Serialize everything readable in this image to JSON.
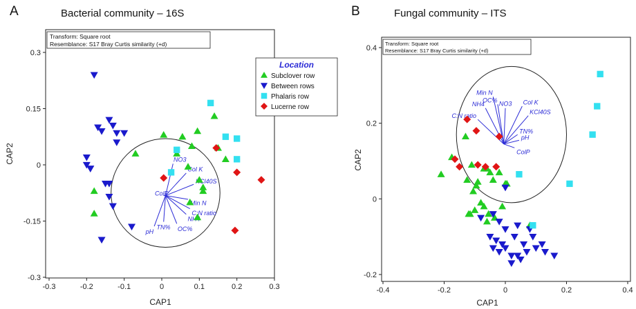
{
  "chart_data": [
    {
      "type": "scatter",
      "panel_letter": "A",
      "title": "Bacterial community – 16S",
      "xlabel": "CAP1",
      "ylabel": "CAP2",
      "xlim": [
        -0.3,
        0.3
      ],
      "ylim": [
        -0.3,
        0.3
      ],
      "xticks": [
        -0.3,
        -0.2,
        -0.1,
        0,
        0.1,
        0.2,
        0.3
      ],
      "yticks": [
        -0.3,
        -0.15,
        0,
        0.15,
        0.3
      ],
      "info_box": [
        "Transform: Square root",
        "Resemblance: S17 Bray Curtis similarity (+d)"
      ],
      "legend": {
        "title": "Location",
        "position": "top-right",
        "entries": [
          {
            "label": "Subclover row",
            "marker": "triangle-up",
            "color": "#22cc22"
          },
          {
            "label": "Between rows",
            "marker": "triangle-down",
            "color": "#1a1acc"
          },
          {
            "label": "Phalaris row",
            "marker": "square",
            "color": "#33e0f0"
          },
          {
            "label": "Lucerne row",
            "marker": "diamond",
            "color": "#e01515"
          }
        ]
      },
      "circle": {
        "cx": 0.01,
        "cy": -0.075,
        "r": 0.145
      },
      "vector_origin": [
        0.01,
        -0.082
      ],
      "vectors": [
        {
          "label": "NO3",
          "dx": 0.02,
          "dy": 0.085
        },
        {
          "label": "Col K",
          "dx": 0.055,
          "dy": 0.06
        },
        {
          "label": "KCl40S",
          "dx": 0.075,
          "dy": 0.03
        },
        {
          "label": "ColP",
          "dx": -0.005,
          "dy": 0.0
        },
        {
          "label": "Min N",
          "dx": 0.06,
          "dy": -0.01
        },
        {
          "label": "C:N ratio",
          "dx": 0.065,
          "dy": -0.035
        },
        {
          "label": "NH4",
          "dx": 0.055,
          "dy": -0.05
        },
        {
          "label": "OC%",
          "dx": 0.03,
          "dy": -0.075
        },
        {
          "label": "TN%",
          "dx": -0.005,
          "dy": -0.07
        },
        {
          "label": "pH",
          "dx": -0.03,
          "dy": -0.082
        }
      ],
      "series": [
        {
          "name": "Subclover row",
          "marker": "triangle-up",
          "color": "#22cc22",
          "x": [
            0.005,
            0.055,
            0.095,
            0.14,
            0.08,
            0.04,
            -0.07,
            0.07,
            0.15,
            0.17,
            0.1,
            0.11,
            0.11,
            0.075,
            0.095,
            -0.18,
            -0.18
          ],
          "y": [
            0.08,
            0.075,
            0.09,
            0.13,
            0.05,
            0.03,
            0.03,
            -0.005,
            0.045,
            0.015,
            -0.04,
            -0.06,
            -0.07,
            -0.1,
            -0.14,
            -0.07,
            -0.13
          ]
        },
        {
          "name": "Between rows",
          "marker": "triangle-down",
          "color": "#1a1acc",
          "x": [
            -0.18,
            -0.17,
            -0.14,
            -0.13,
            -0.12,
            -0.1,
            -0.16,
            -0.12,
            -0.2,
            -0.2,
            -0.19,
            -0.19,
            -0.15,
            -0.14,
            -0.14,
            -0.13,
            -0.16,
            -0.08
          ],
          "y": [
            0.24,
            0.1,
            0.12,
            0.105,
            0.085,
            0.085,
            0.09,
            0.06,
            0.02,
            0.0,
            -0.01,
            -0.01,
            -0.05,
            -0.05,
            -0.085,
            -0.11,
            -0.2,
            -0.165
          ]
        },
        {
          "name": "Phalaris row",
          "marker": "square",
          "color": "#33e0f0",
          "x": [
            0.13,
            0.17,
            0.2,
            0.2,
            0.04,
            0.025
          ],
          "y": [
            0.165,
            0.075,
            0.07,
            0.015,
            0.04,
            -0.02
          ]
        },
        {
          "name": "Lucerne row",
          "marker": "diamond",
          "color": "#e01515",
          "x": [
            0.145,
            0.2,
            0.265,
            0.195,
            0.005
          ],
          "y": [
            0.045,
            -0.02,
            -0.04,
            -0.175,
            -0.035
          ]
        }
      ]
    },
    {
      "type": "scatter",
      "panel_letter": "B",
      "title": "Fungal community – ITS",
      "xlabel": "CAP1",
      "ylabel": "CAP2",
      "xlim": [
        -0.4,
        0.4
      ],
      "ylim": [
        -0.2,
        0.4
      ],
      "xticks": [
        -0.4,
        -0.2,
        0,
        0.2,
        0.4
      ],
      "yticks": [
        -0.2,
        0,
        0.2,
        0.4
      ],
      "info_box": [
        "Transform: Square root",
        "Resemblance: S17 Bray Curtis similarity (+d)"
      ],
      "circle": {
        "cx": 0.02,
        "cy": 0.17,
        "r": 0.18
      },
      "vector_origin": [
        -0.005,
        0.145
      ],
      "vectors": [
        {
          "label": "Min N",
          "dx": -0.035,
          "dy": 0.125
        },
        {
          "label": "OC%",
          "dx": -0.02,
          "dy": 0.105
        },
        {
          "label": "NH4",
          "dx": -0.06,
          "dy": 0.095
        },
        {
          "label": "NO3",
          "dx": 0.005,
          "dy": 0.095
        },
        {
          "label": "Col K",
          "dx": 0.06,
          "dy": 0.1
        },
        {
          "label": "KCl40S",
          "dx": 0.08,
          "dy": 0.075
        },
        {
          "label": "C:N ratio",
          "dx": -0.085,
          "dy": 0.065
        },
        {
          "label": "TN%",
          "dx": 0.045,
          "dy": 0.025
        },
        {
          "label": "pH",
          "dx": 0.05,
          "dy": 0.01
        },
        {
          "label": "ColP",
          "dx": 0.035,
          "dy": -0.01
        }
      ],
      "series": [
        {
          "name": "Subclover row",
          "marker": "triangle-up",
          "color": "#22cc22",
          "x": [
            -0.13,
            -0.175,
            -0.21,
            -0.11,
            -0.125,
            -0.09,
            -0.07,
            -0.06,
            -0.05,
            -0.04,
            -0.02,
            0.0,
            0.005,
            -0.095,
            -0.105,
            -0.12,
            -0.1,
            -0.08,
            -0.07,
            -0.055,
            -0.035,
            -0.01,
            -0.06,
            -0.115,
            0.08
          ],
          "y": [
            0.165,
            0.11,
            0.065,
            0.09,
            0.05,
            0.045,
            0.08,
            0.08,
            0.07,
            0.05,
            0.07,
            0.04,
            0.04,
            0.035,
            0.02,
            -0.04,
            -0.03,
            -0.01,
            -0.02,
            -0.04,
            -0.05,
            -0.02,
            -0.06,
            -0.04,
            -0.07
          ]
        },
        {
          "name": "Between rows",
          "marker": "triangle-down",
          "color": "#1a1acc",
          "x": [
            0.0,
            -0.08,
            -0.04,
            -0.02,
            0.0,
            0.04,
            0.08,
            -0.05,
            -0.03,
            -0.01,
            0.03,
            0.06,
            0.09,
            0.12,
            -0.04,
            -0.02,
            0.0,
            0.02,
            0.04,
            0.07,
            0.1,
            0.13,
            0.16,
            0.02,
            0.05
          ],
          "y": [
            0.03,
            -0.05,
            -0.04,
            -0.06,
            -0.08,
            -0.07,
            -0.08,
            -0.1,
            -0.11,
            -0.12,
            -0.1,
            -0.12,
            -0.1,
            -0.12,
            -0.13,
            -0.14,
            -0.13,
            -0.15,
            -0.15,
            -0.14,
            -0.13,
            -0.14,
            -0.15,
            -0.17,
            -0.16
          ]
        },
        {
          "name": "Phalaris row",
          "marker": "square",
          "color": "#33e0f0",
          "x": [
            0.31,
            0.3,
            0.285,
            0.21,
            0.045,
            0.09
          ],
          "y": [
            0.33,
            0.245,
            0.17,
            0.04,
            0.065,
            -0.07
          ]
        },
        {
          "name": "Lucerne row",
          "marker": "diamond",
          "color": "#e01515",
          "x": [
            -0.125,
            -0.095,
            -0.165,
            -0.15,
            -0.09,
            -0.065,
            -0.03,
            -0.02
          ],
          "y": [
            0.21,
            0.18,
            0.105,
            0.085,
            0.09,
            0.085,
            0.085,
            0.165
          ]
        }
      ]
    }
  ]
}
